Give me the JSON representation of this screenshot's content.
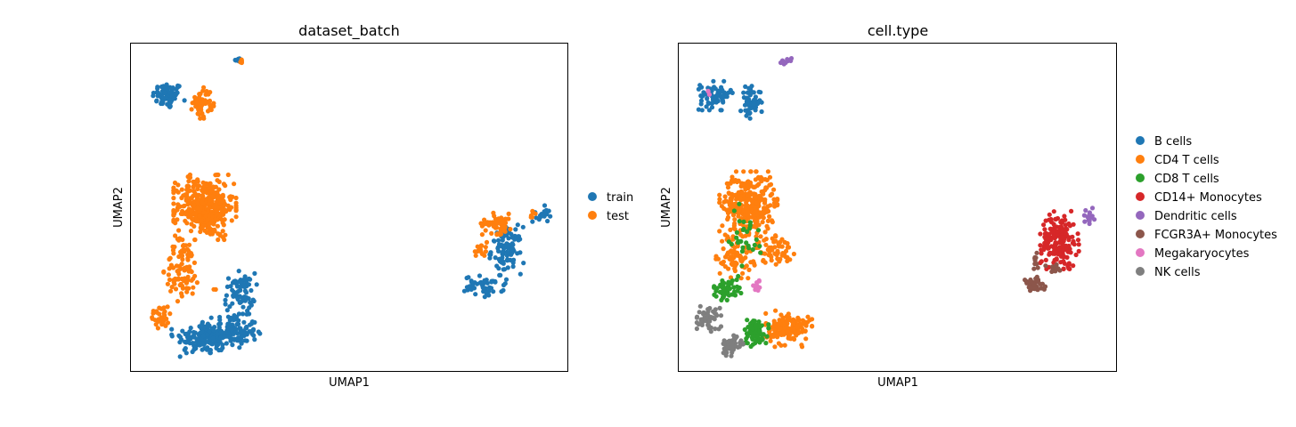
{
  "chart_data": [
    {
      "type": "scatter",
      "title": "dataset_batch",
      "xlabel": "UMAP1",
      "ylabel": "UMAP2",
      "xlim": [
        0,
        100
      ],
      "ylim": [
        0,
        100
      ],
      "ticks": "none",
      "grid": false,
      "legend_position": "right",
      "series": [
        {
          "name": "train",
          "color": "#1f77b4",
          "clusters": [
            {
              "cx": 8.5,
              "cy": 84,
              "rx": 3.5,
              "ry": 4,
              "n": 70
            },
            {
              "cx": 24.5,
              "cy": 95,
              "rx": 0.6,
              "ry": 0.8,
              "n": 6
            },
            {
              "cx": 16,
              "cy": 10,
              "rx": 6,
              "ry": 5,
              "n": 110
            },
            {
              "cx": 23,
              "cy": 12,
              "rx": 6,
              "ry": 5,
              "n": 150
            },
            {
              "cx": 25,
              "cy": 24,
              "rx": 3.5,
              "ry": 6,
              "n": 70
            },
            {
              "cx": 86,
              "cy": 37,
              "rx": 3.5,
              "ry": 7,
              "n": 100
            },
            {
              "cx": 81,
              "cy": 26,
              "rx": 4.5,
              "ry": 3,
              "n": 50
            },
            {
              "cx": 94,
              "cy": 48,
              "rx": 2,
              "ry": 2.5,
              "n": 18
            }
          ]
        },
        {
          "name": "test",
          "color": "#ff7f0e",
          "clusters": [
            {
              "cx": 16.5,
              "cy": 82,
              "rx": 2.3,
              "ry": 4.5,
              "n": 55
            },
            {
              "cx": 25.5,
              "cy": 94.5,
              "rx": 0.6,
              "ry": 0.6,
              "n": 4
            },
            {
              "cx": 17,
              "cy": 50,
              "rx": 6.5,
              "ry": 9,
              "n": 400
            },
            {
              "cx": 12,
              "cy": 31,
              "rx": 4,
              "ry": 9,
              "n": 90
            },
            {
              "cx": 7,
              "cy": 17,
              "rx": 2.5,
              "ry": 4,
              "n": 30
            },
            {
              "cx": 84,
              "cy": 45,
              "rx": 3.5,
              "ry": 3,
              "n": 60
            },
            {
              "cx": 80,
              "cy": 37,
              "rx": 1.5,
              "ry": 3,
              "n": 15
            },
            {
              "cx": 92,
              "cy": 48,
              "rx": 1,
              "ry": 1,
              "n": 6
            },
            {
              "cx": 19.5,
              "cy": 25,
              "rx": 0.5,
              "ry": 0.5,
              "n": 2
            }
          ]
        }
      ]
    },
    {
      "type": "scatter",
      "title": "cell.type",
      "xlabel": "UMAP1",
      "ylabel": "UMAP2",
      "xlim": [
        0,
        100
      ],
      "ylim": [
        0,
        100
      ],
      "ticks": "none",
      "grid": false,
      "legend_position": "right",
      "series": [
        {
          "name": "B cells",
          "color": "#1f77b4",
          "clusters": [
            {
              "cx": 8.5,
              "cy": 84,
              "rx": 3.5,
              "ry": 4,
              "n": 70
            },
            {
              "cx": 16.5,
              "cy": 82,
              "rx": 2.3,
              "ry": 4.5,
              "n": 55
            }
          ]
        },
        {
          "name": "CD4 T cells",
          "color": "#ff7f0e",
          "clusters": [
            {
              "cx": 16,
              "cy": 51,
              "rx": 6,
              "ry": 9,
              "n": 320
            },
            {
              "cx": 13,
              "cy": 35,
              "rx": 4,
              "ry": 6,
              "n": 80
            },
            {
              "cx": 22,
              "cy": 37,
              "rx": 4,
              "ry": 4,
              "n": 60
            },
            {
              "cx": 25,
              "cy": 13,
              "rx": 5,
              "ry": 5,
              "n": 150
            }
          ]
        },
        {
          "name": "CD8 T cells",
          "color": "#2ca02c",
          "clusters": [
            {
              "cx": 11,
              "cy": 25,
              "rx": 3,
              "ry": 3,
              "n": 50
            },
            {
              "cx": 17.5,
              "cy": 12,
              "rx": 2.8,
              "ry": 4,
              "n": 80
            },
            {
              "cx": 15,
              "cy": 40,
              "rx": 5,
              "ry": 10,
              "n": 30
            }
          ]
        },
        {
          "name": "CD14+ Monocytes",
          "color": "#d62728",
          "clusters": [
            {
              "cx": 87,
              "cy": 40,
              "rx": 4,
              "ry": 8,
              "n": 180
            }
          ]
        },
        {
          "name": "Dendritic cells",
          "color": "#9467bd",
          "clusters": [
            {
              "cx": 24.5,
              "cy": 94.5,
              "rx": 1.2,
              "ry": 0.8,
              "n": 12
            },
            {
              "cx": 93.5,
              "cy": 47,
              "rx": 1.5,
              "ry": 2.5,
              "n": 15
            }
          ]
        },
        {
          "name": "FCGR3A+ Monocytes",
          "color": "#8c564b",
          "clusters": [
            {
              "cx": 81,
              "cy": 26,
              "rx": 2.5,
              "ry": 2.5,
              "n": 40
            },
            {
              "cx": 81.5,
              "cy": 34,
              "rx": 1,
              "ry": 3,
              "n": 10
            },
            {
              "cx": 86,
              "cy": 31,
              "rx": 2,
              "ry": 1.5,
              "n": 15
            }
          ]
        },
        {
          "name": "Megakaryocytes",
          "color": "#e377c2",
          "clusters": [
            {
              "cx": 18,
              "cy": 26,
              "rx": 1.5,
              "ry": 2,
              "n": 12
            },
            {
              "cx": 7,
              "cy": 85,
              "rx": 1,
              "ry": 1,
              "n": 3
            }
          ]
        },
        {
          "name": "NK cells",
          "color": "#7f7f7f",
          "clusters": [
            {
              "cx": 7,
              "cy": 16,
              "rx": 2.5,
              "ry": 3.5,
              "n": 50
            },
            {
              "cx": 12,
              "cy": 8,
              "rx": 2.5,
              "ry": 3,
              "n": 50
            }
          ]
        }
      ]
    }
  ]
}
